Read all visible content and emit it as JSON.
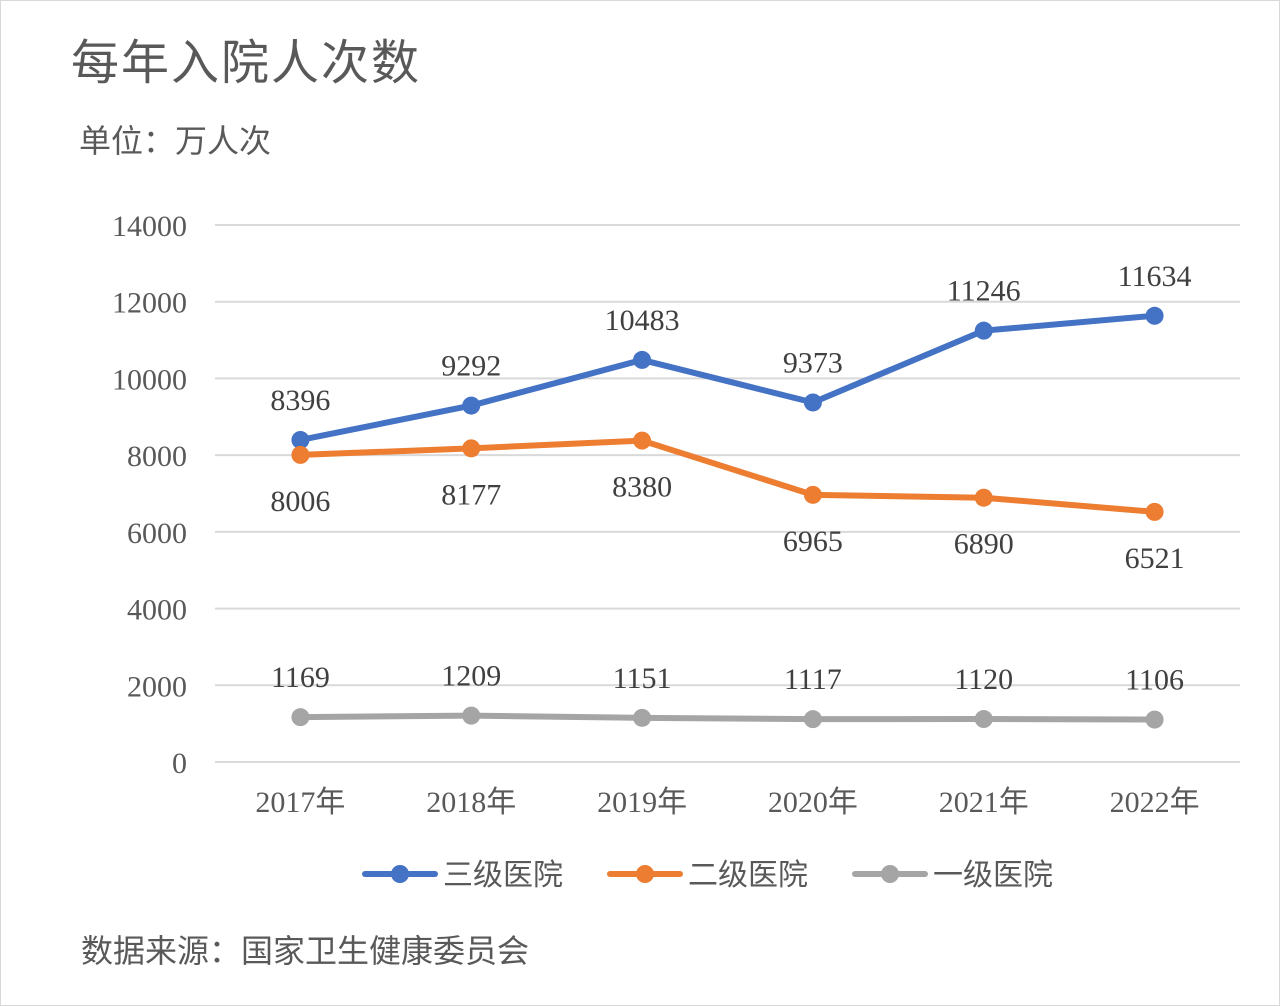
{
  "header": {
    "title": "每年入院人次数",
    "unit": "单位：万人次"
  },
  "footer": {
    "source": "数据来源：国家卫生健康委员会"
  },
  "chart_data": {
    "type": "line",
    "title": "每年入院人次数",
    "ylabel": "单位：万人次",
    "xlabel": "",
    "categories": [
      "2017年",
      "2018年",
      "2019年",
      "2020年",
      "2021年",
      "2022年"
    ],
    "ylim": [
      0,
      14000
    ],
    "yticks": [
      0,
      2000,
      4000,
      6000,
      8000,
      10000,
      12000,
      14000
    ],
    "grid": true,
    "legend_position": "bottom",
    "series": [
      {
        "name": "三级医院",
        "color": "#4472c4",
        "values": [
          8396,
          9292,
          10483,
          9373,
          11246,
          11634
        ],
        "label_position": "above"
      },
      {
        "name": "二级医院",
        "color": "#ed7d31",
        "values": [
          8006,
          8177,
          8380,
          6965,
          6890,
          6521
        ],
        "label_position": "below"
      },
      {
        "name": "一级医院",
        "color": "#a5a5a5",
        "values": [
          1169,
          1209,
          1151,
          1117,
          1120,
          1106
        ],
        "label_position": "above"
      }
    ]
  }
}
